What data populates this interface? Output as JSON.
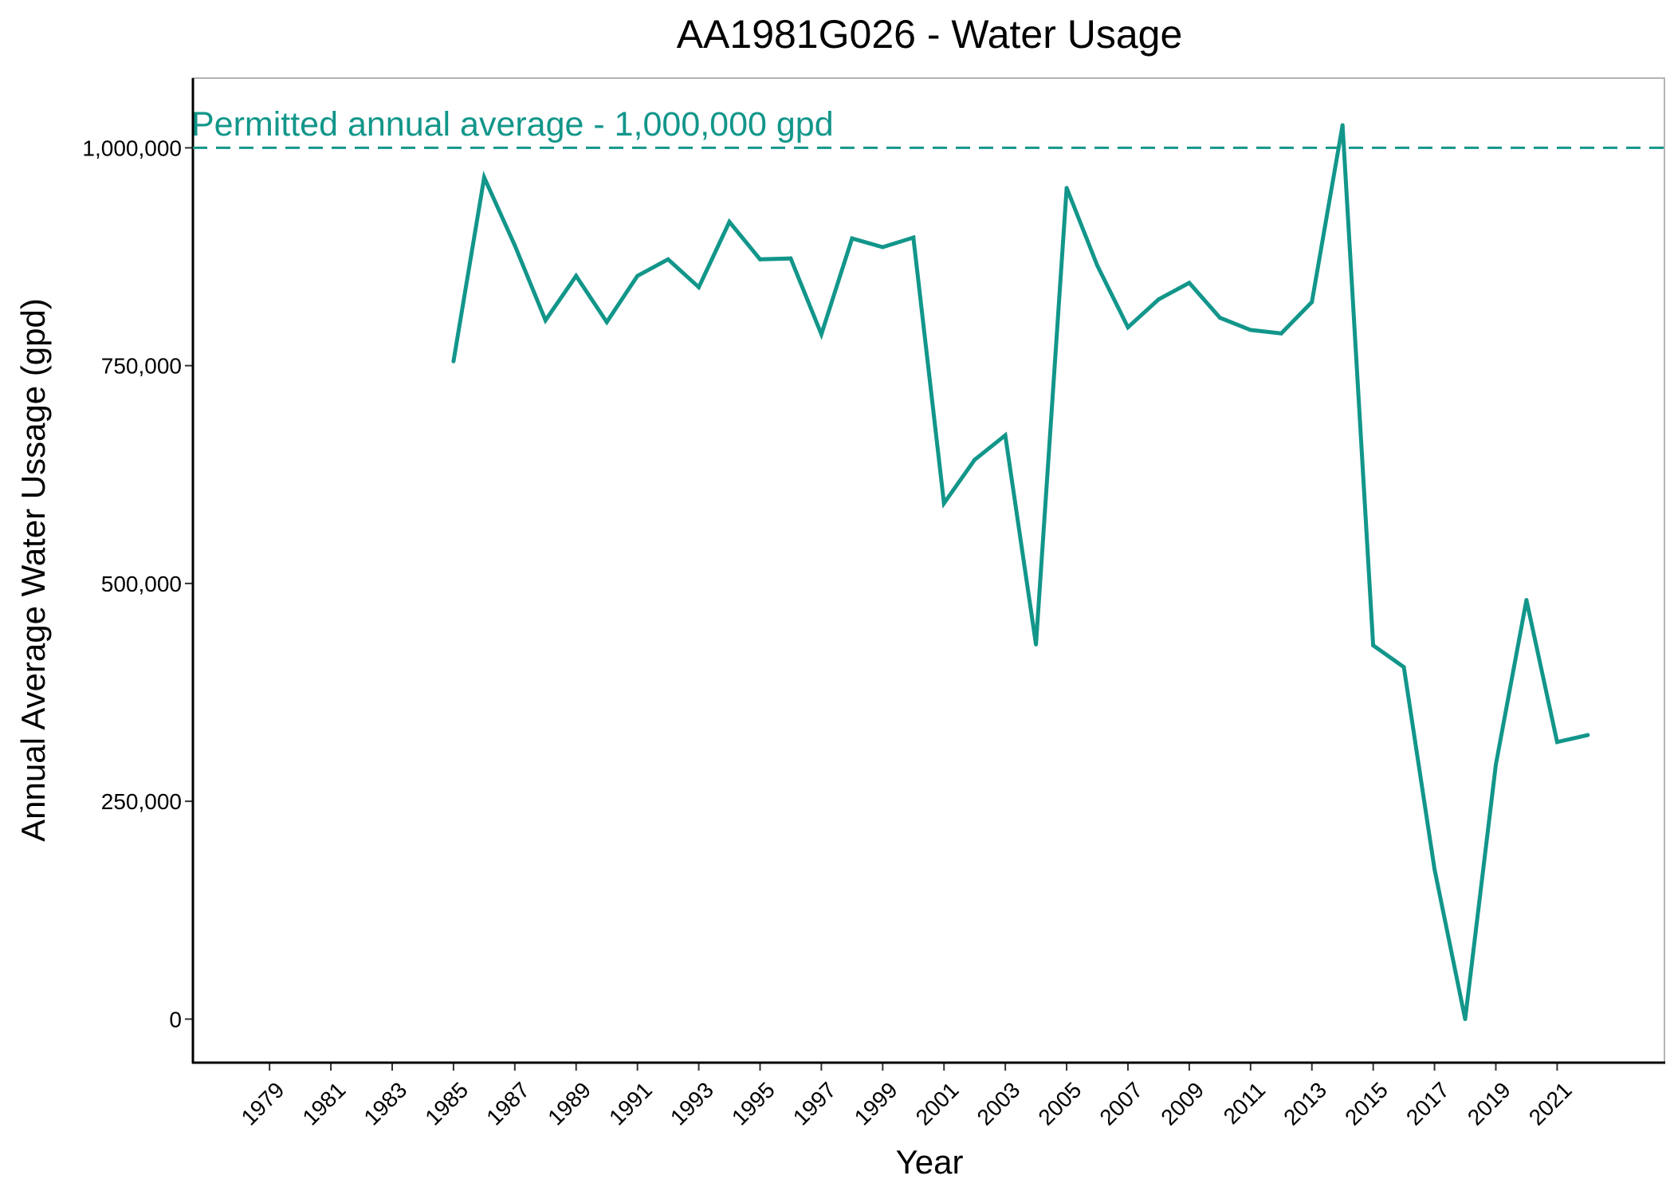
{
  "chart_data": {
    "type": "line",
    "title": "AA1981G026 - Water Usage",
    "xlabel": "Year",
    "ylabel": "Annual Average Water Ussage (gpd)",
    "xlim": [
      1976.5,
      2024.5
    ],
    "ylim": [
      -50000,
      1080000
    ],
    "x_ticks": [
      1979,
      1981,
      1983,
      1985,
      1987,
      1989,
      1991,
      1993,
      1995,
      1997,
      1999,
      2001,
      2003,
      2005,
      2007,
      2009,
      2011,
      2013,
      2015,
      2017,
      2019,
      2021
    ],
    "y_ticks": [
      0,
      250000,
      500000,
      750000,
      1000000
    ],
    "y_tick_labels": [
      "0",
      "250,000",
      "500,000",
      "750,000",
      "1,000,000"
    ],
    "grid": false,
    "series": [
      {
        "color": "#12968A",
        "x": [
          1985,
          1986,
          1987,
          1988,
          1989,
          1990,
          1991,
          1992,
          1993,
          1994,
          1995,
          1996,
          1997,
          1998,
          1999,
          2000,
          2001,
          2002,
          2003,
          2004,
          2005,
          2006,
          2007,
          2008,
          2009,
          2010,
          2011,
          2012,
          2013,
          2014,
          2015,
          2016,
          2017,
          2018,
          2019,
          2020,
          2021,
          2022
        ],
        "values": [
          755000,
          966000,
          888000,
          802000,
          853000,
          800000,
          853000,
          872000,
          840000,
          915000,
          872000,
          873000,
          786000,
          896000,
          886000,
          897000,
          592000,
          642000,
          670000,
          430000,
          954000,
          865000,
          794000,
          826000,
          845000,
          805000,
          791000,
          787000,
          823000,
          1026000,
          429000,
          404000,
          172000,
          0,
          292000,
          481000,
          318000,
          326000
        ]
      }
    ],
    "reference_line": {
      "value": 1000000,
      "label": "Permitted annual average - 1,000,000 gpd",
      "color": "#12968A",
      "style": "dashed"
    }
  }
}
